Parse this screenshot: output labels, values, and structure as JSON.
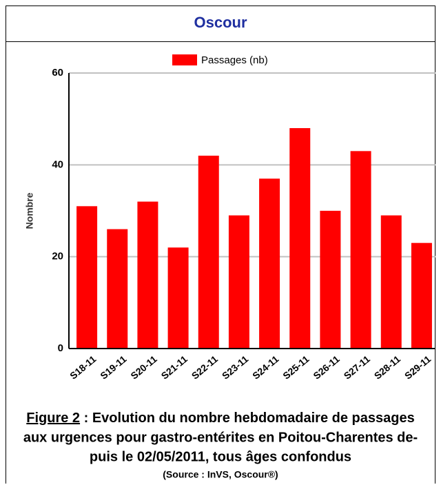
{
  "chart_data": {
    "type": "bar",
    "title": "Oscour",
    "ylabel": "Nombre",
    "legend": "Passages (nb)",
    "color": "#ff0000",
    "categories": [
      "S18-11",
      "S19-11",
      "S20-11",
      "S21-11",
      "S22-11",
      "S23-11",
      "S24-11",
      "S25-11",
      "S26-11",
      "S27-11",
      "S28-11",
      "S29-11"
    ],
    "values": [
      31,
      26,
      32,
      22,
      42,
      29,
      37,
      48,
      30,
      43,
      29,
      23
    ],
    "ylim": [
      0,
      60
    ],
    "yticks": [
      0,
      20,
      40,
      60
    ],
    "grid": true
  },
  "caption": {
    "label": "Figure 2",
    "lines": [
      " : Evolution du nombre hebdomadaire de passages",
      "aux urgences pour gastro-entérites en Poitou-Charentes de-",
      "puis le 02/05/2011, tous âges confondus"
    ],
    "source": "(Source : InVS, Oscour®)"
  }
}
